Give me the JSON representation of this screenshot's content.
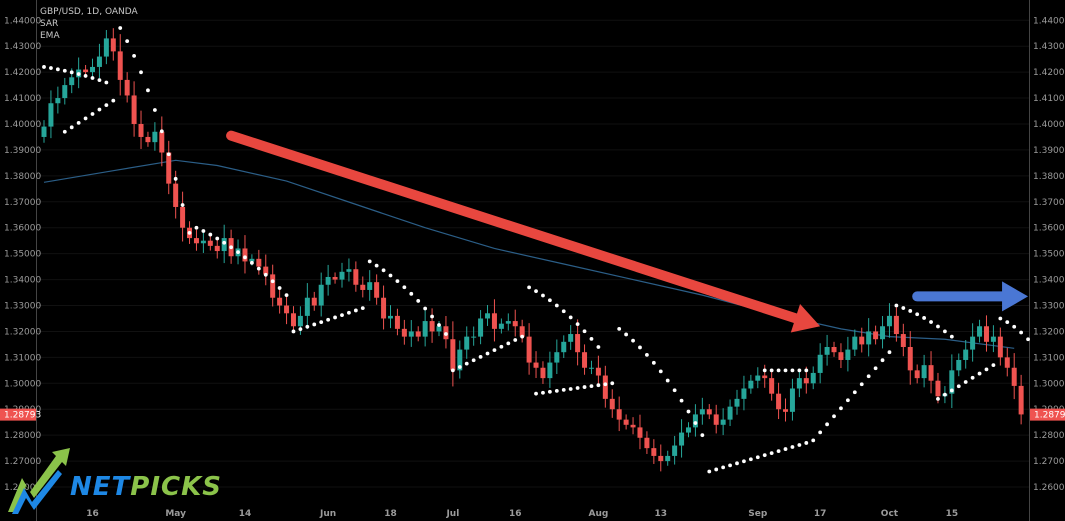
{
  "legend": {
    "symbol": "GBP/USD, 1D, OANDA",
    "ind1": "SAR",
    "ind2": "EMA"
  },
  "logo": {
    "part1": "NET",
    "part2": "PICKS"
  },
  "colors": {
    "background": "#000000",
    "up": "#26a69a",
    "down": "#ef5350",
    "ema": "#2b5e87",
    "sar": "#ffffff",
    "arrow_down": "#e8473f",
    "arrow_right": "#4a77d4",
    "price_tag": "#ef5350",
    "logo_blue": "#1e88e5",
    "logo_green": "#8bc34a"
  },
  "chart_data": {
    "type": "candlestick",
    "title": "GBP/USD, 1D, OANDA",
    "indicators": [
      "SAR",
      "EMA"
    ],
    "ylim": [
      1.255,
      1.4455
    ],
    "y_ticks": [
      "1.44000",
      "1.43000",
      "1.42000",
      "1.41000",
      "1.40000",
      "1.39000",
      "1.38000",
      "1.37000",
      "1.36000",
      "1.35000",
      "1.34000",
      "1.33000",
      "1.32000",
      "1.31000",
      "1.30000",
      "1.29000",
      "1.28000",
      "1.27000",
      "1.26000"
    ],
    "last_price": "1.28793",
    "last_price_value": 1.28793,
    "x_labels": [
      {
        "label": "16",
        "bar": 7
      },
      {
        "label": "May",
        "bar": 19
      },
      {
        "label": "14",
        "bar": 29
      },
      {
        "label": "Jun",
        "bar": 41
      },
      {
        "label": "18",
        "bar": 50
      },
      {
        "label": "Jul",
        "bar": 59
      },
      {
        "label": "16",
        "bar": 68
      },
      {
        "label": "Aug",
        "bar": 80
      },
      {
        "label": "13",
        "bar": 89
      },
      {
        "label": "Sep",
        "bar": 103
      },
      {
        "label": "17",
        "bar": 112
      },
      {
        "label": "Oct",
        "bar": 122
      },
      {
        "label": "15",
        "bar": 131
      }
    ],
    "closes": [
      1.399,
      1.408,
      1.41,
      1.415,
      1.418,
      1.421,
      1.42,
      1.422,
      1.426,
      1.433,
      1.428,
      1.417,
      1.411,
      1.4,
      1.395,
      1.393,
      1.397,
      1.389,
      1.377,
      1.368,
      1.36,
      1.356,
      1.354,
      1.355,
      1.353,
      1.351,
      1.356,
      1.349,
      1.352,
      1.347,
      1.348,
      1.345,
      1.342,
      1.333,
      1.33,
      1.327,
      1.322,
      1.326,
      1.333,
      1.33,
      1.338,
      1.341,
      1.34,
      1.343,
      1.344,
      1.338,
      1.336,
      1.339,
      1.333,
      1.325,
      1.326,
      1.321,
      1.318,
      1.32,
      1.318,
      1.324,
      1.32,
      1.322,
      1.317,
      1.305,
      1.313,
      1.318,
      1.318,
      1.325,
      1.327,
      1.321,
      1.323,
      1.324,
      1.322,
      1.318,
      1.308,
      1.306,
      1.302,
      1.308,
      1.312,
      1.316,
      1.319,
      1.312,
      1.306,
      1.306,
      1.303,
      1.294,
      1.29,
      1.286,
      1.284,
      1.283,
      1.279,
      1.275,
      1.272,
      1.27,
      1.272,
      1.276,
      1.281,
      1.283,
      1.288,
      1.29,
      1.288,
      1.284,
      1.286,
      1.291,
      1.294,
      1.298,
      1.301,
      1.303,
      1.302,
      1.296,
      1.29,
      1.289,
      1.298,
      1.302,
      1.3,
      1.304,
      1.311,
      1.314,
      1.312,
      1.309,
      1.313,
      1.318,
      1.315,
      1.32,
      1.317,
      1.322,
      1.326,
      1.319,
      1.314,
      1.305,
      1.302,
      1.307,
      1.301,
      1.295,
      1.296,
      1.305,
      1.309,
      1.313,
      1.318,
      1.322,
      1.316,
      1.318,
      1.31,
      1.306,
      1.299,
      1.288
    ],
    "ema_points": [
      [
        0,
        1.3775
      ],
      [
        10,
        1.382
      ],
      [
        19,
        1.386
      ],
      [
        25,
        1.384
      ],
      [
        35,
        1.378
      ],
      [
        45,
        1.369
      ],
      [
        55,
        1.36
      ],
      [
        65,
        1.352
      ],
      [
        75,
        1.346
      ],
      [
        85,
        1.34
      ],
      [
        95,
        1.334
      ],
      [
        105,
        1.327
      ],
      [
        115,
        1.321
      ],
      [
        122,
        1.318
      ],
      [
        130,
        1.317
      ],
      [
        140,
        1.3135
      ]
    ],
    "sar_segments": [
      {
        "bars": [
          0,
          9
        ],
        "start": 1.422,
        "end": 1.416
      },
      {
        "bars": [
          3,
          10
        ],
        "start": 1.397,
        "end": 1.409
      },
      {
        "bars": [
          11,
          21
        ],
        "start": 1.437,
        "end": 1.358
      },
      {
        "bars": [
          22,
          35
        ],
        "start": 1.36,
        "end": 1.334
      },
      {
        "bars": [
          36,
          46
        ],
        "start": 1.32,
        "end": 1.329
      },
      {
        "bars": [
          47,
          58
        ],
        "start": 1.347,
        "end": 1.319
      },
      {
        "bars": [
          59,
          69
        ],
        "start": 1.305,
        "end": 1.318
      },
      {
        "bars": [
          70,
          80
        ],
        "start": 1.337,
        "end": 1.314
      },
      {
        "bars": [
          71,
          82
        ],
        "start": 1.296,
        "end": 1.3
      },
      {
        "bars": [
          83,
          95
        ],
        "start": 1.321,
        "end": 1.28
      },
      {
        "bars": [
          96,
          110
        ],
        "start": 1.266,
        "end": 1.277
      },
      {
        "bars": [
          104,
          110
        ],
        "start": 1.305,
        "end": 1.305
      },
      {
        "bars": [
          111,
          122
        ],
        "start": 1.278,
        "end": 1.312
      },
      {
        "bars": [
          123,
          131
        ],
        "start": 1.33,
        "end": 1.318
      },
      {
        "bars": [
          129,
          137
        ],
        "start": 1.294,
        "end": 1.307
      },
      {
        "bars": [
          138,
          142
        ],
        "start": 1.325,
        "end": 1.317
      }
    ],
    "annotations": [
      {
        "type": "arrow",
        "direction": "down-right",
        "from_bar": 27,
        "from_price": 1.3955,
        "to_bar": 112,
        "to_price": 1.322
      },
      {
        "type": "arrow",
        "direction": "right",
        "from_bar": 126,
        "from_price": 1.3335,
        "to_bar": 142,
        "to_price": 1.3335
      }
    ]
  }
}
